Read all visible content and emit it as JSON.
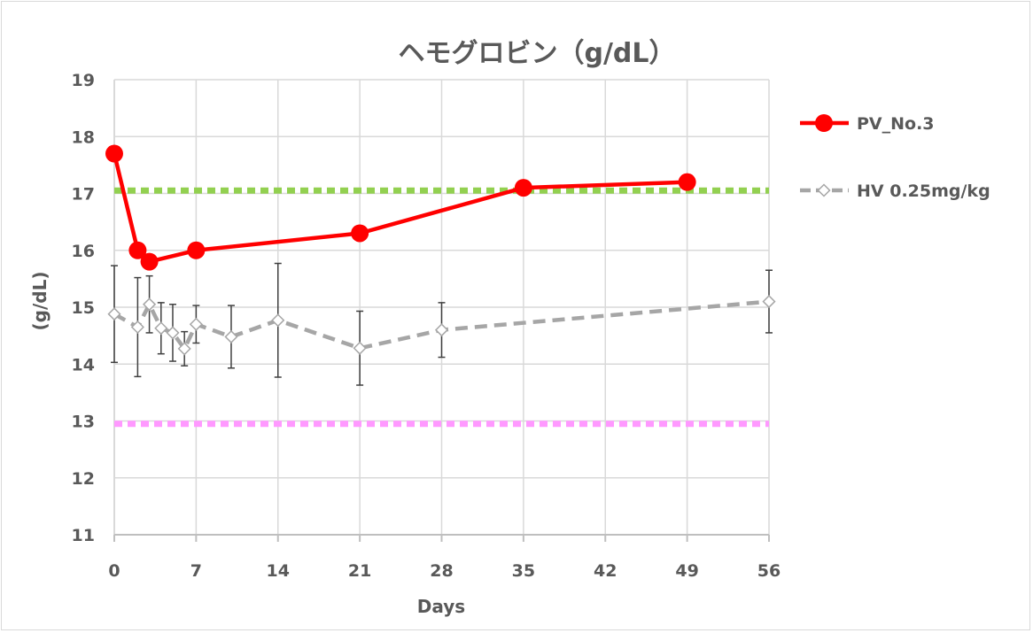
{
  "chart_data": {
    "type": "line",
    "title": "ヘモグロビン（g/dL）",
    "xlabel": "Days",
    "ylabel": "(g/dL)",
    "xlim": [
      0,
      56
    ],
    "ylim": [
      11,
      19
    ],
    "xticks": [
      0,
      7,
      14,
      21,
      28,
      35,
      42,
      49,
      56
    ],
    "yticks": [
      11,
      12,
      13,
      14,
      15,
      16,
      17,
      18,
      19
    ],
    "grid": true,
    "legend_position": "right",
    "series": [
      {
        "name": "PV_No.3",
        "color": "#ff0000",
        "marker": "circle",
        "line_style": "solid",
        "points": [
          [
            0,
            17.7
          ],
          [
            2,
            16.0
          ],
          [
            3,
            15.8
          ],
          [
            7,
            16.0
          ],
          [
            21,
            16.3
          ],
          [
            35,
            17.1
          ],
          [
            49,
            17.2
          ]
        ]
      },
      {
        "name": "HV 0.25mg/kg",
        "color": "#a6a6a6",
        "marker": "diamond-open",
        "line_style": "dashed",
        "points": [
          [
            0,
            14.88
          ],
          [
            2,
            14.65
          ],
          [
            3,
            15.05
          ],
          [
            4,
            14.63
          ],
          [
            5,
            14.55
          ],
          [
            6,
            14.27
          ],
          [
            7,
            14.7
          ],
          [
            10,
            14.48
          ],
          [
            14,
            14.77
          ],
          [
            21,
            14.28
          ],
          [
            28,
            14.6
          ],
          [
            56,
            15.1
          ]
        ],
        "error": [
          0.85,
          0.87,
          0.5,
          0.45,
          0.5,
          0.3,
          0.33,
          0.55,
          1.0,
          0.65,
          0.48,
          0.55
        ]
      }
    ],
    "reference_lines": [
      {
        "y": 17.05,
        "color": "#92d050",
        "style": "dotted"
      },
      {
        "y": 12.95,
        "color": "#ff99ff",
        "style": "dotted"
      }
    ]
  }
}
